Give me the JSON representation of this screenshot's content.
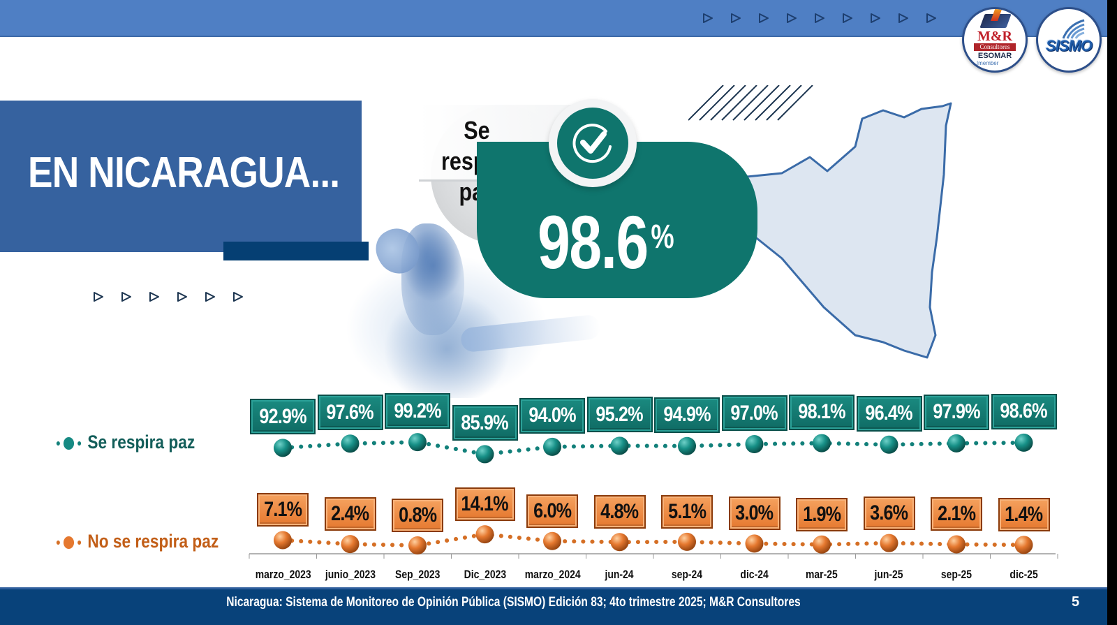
{
  "header": {
    "arrow_count": 9,
    "logos": {
      "mr": {
        "title": "M&R",
        "subtitle": "Consultores",
        "org": "ESOMAR",
        "member": "|member"
      },
      "sismo": {
        "title": "SISMO"
      }
    }
  },
  "title": {
    "text": "EN NICARAGUA...",
    "arrow_count": 6
  },
  "highlight": {
    "label": "Se respira paz",
    "value": "98.6",
    "unit": "%",
    "icon": "check-circle-icon"
  },
  "legend": {
    "yes": "Se respira paz",
    "no": "No se respira paz"
  },
  "chart_data": {
    "type": "line",
    "title": "",
    "xlabel": "",
    "ylabel": "",
    "categories": [
      "marzo_2023",
      "junio_2023",
      "Sep_2023",
      "Dic_2023",
      "marzo_2024",
      "jun-24",
      "sep-24",
      "dic-24",
      "mar-25",
      "jun-25",
      "sep-25",
      "dic-25"
    ],
    "series": [
      {
        "name": "Se respira paz",
        "color": "#12807a",
        "values": [
          92.9,
          97.6,
          99.2,
          85.9,
          94.0,
          95.2,
          94.9,
          97.0,
          98.1,
          96.4,
          97.9,
          98.6
        ],
        "labels": [
          "92.9%",
          "97.6%",
          "99.2%",
          "85.9%",
          "94.0%",
          "95.2%",
          "94.9%",
          "97.0%",
          "98.1%",
          "96.4%",
          "97.9%",
          "98.6%"
        ]
      },
      {
        "name": "No se respira paz",
        "color": "#e07a2c",
        "values": [
          7.1,
          2.4,
          0.8,
          14.1,
          6.0,
          4.8,
          5.1,
          3.0,
          1.9,
          3.6,
          2.1,
          1.4
        ],
        "labels": [
          "7.1%",
          "2.4%",
          "0.8%",
          "14.1%",
          "6.0%",
          "4.8%",
          "5.1%",
          "3.0%",
          "1.9%",
          "3.6%",
          "2.1%",
          "1.4%"
        ]
      }
    ],
    "line_style": "dotted",
    "markers": "sphere",
    "data_labels": true,
    "grid": false,
    "legend_position": "left"
  },
  "footer": {
    "source": "Nicaragua: Sistema de Monitoreo de Opinión Pública (SISMO) Edición 83; 4to trimestre 2025; M&R Consultores",
    "page": "5"
  },
  "colors": {
    "top_bar": "#4f7fc4",
    "title_box": "#36629f",
    "title_accent": "#053f73",
    "teal": "#0f756d",
    "orange": "#e5782f",
    "footer": "#08427a"
  }
}
